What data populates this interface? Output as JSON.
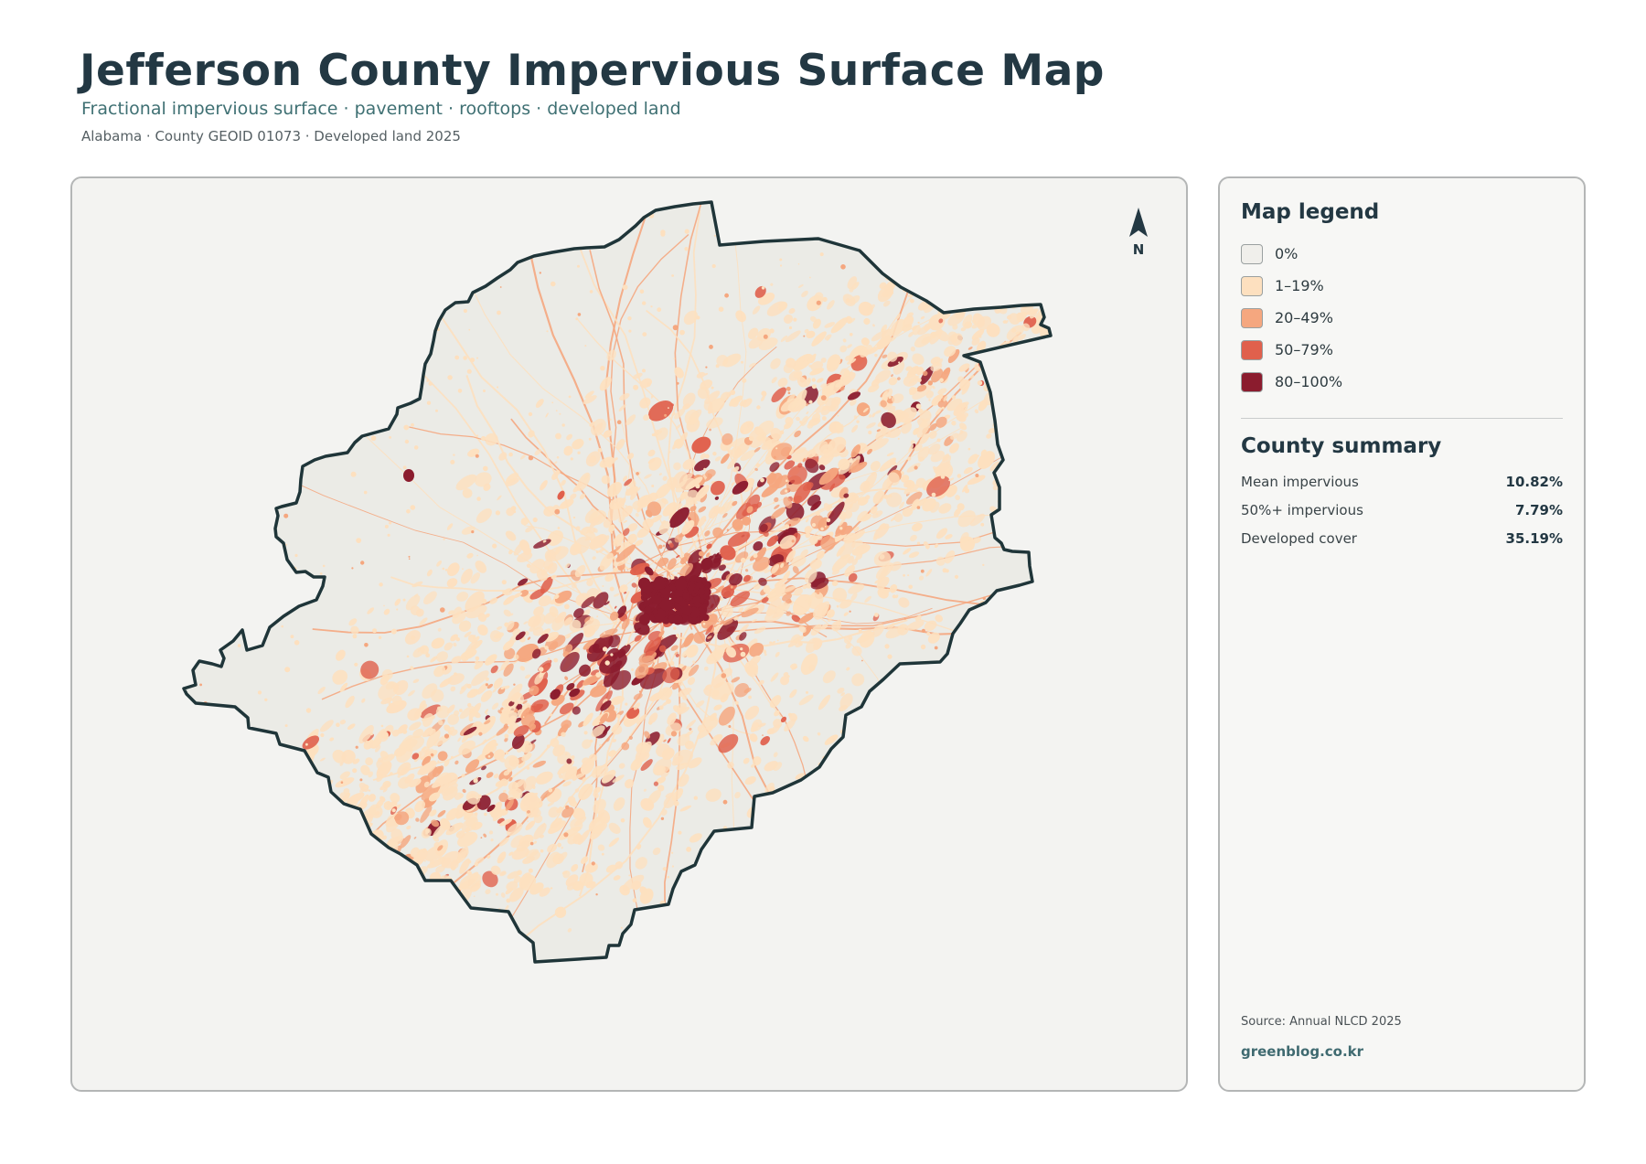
{
  "header": {
    "title": "Jefferson County Impervious Surface Map",
    "subtitle": "Fractional impervious surface · pavement · rooftops · developed land",
    "meta": "Alabama · County GEOID 01073 · Developed land 2025"
  },
  "map": {
    "north_label": "N",
    "colors": {
      "boundary": "#1f3539",
      "base": "#ebebe6",
      "class_0": "#f0efeb",
      "class_1": "#fde0bf",
      "class_2": "#f5a77f",
      "class_3": "#e0604c",
      "class_4": "#8b1c2e"
    }
  },
  "legend": {
    "title": "Map legend",
    "items": [
      {
        "label": "0%",
        "color": "#f0efeb"
      },
      {
        "label": "1–19%",
        "color": "#fde0bf"
      },
      {
        "label": "20–49%",
        "color": "#f5a77f"
      },
      {
        "label": "50–79%",
        "color": "#e0604c"
      },
      {
        "label": "80–100%",
        "color": "#8b1c2e"
      }
    ]
  },
  "summary": {
    "title": "County summary",
    "stats": [
      {
        "label": "Mean impervious",
        "value": "10.82%"
      },
      {
        "label": "50%+ impervious",
        "value": "7.79%"
      },
      {
        "label": "Developed cover",
        "value": "35.19%"
      }
    ]
  },
  "footer": {
    "source": "Source: Annual NLCD 2025",
    "brand": "greenblog.co.kr"
  }
}
